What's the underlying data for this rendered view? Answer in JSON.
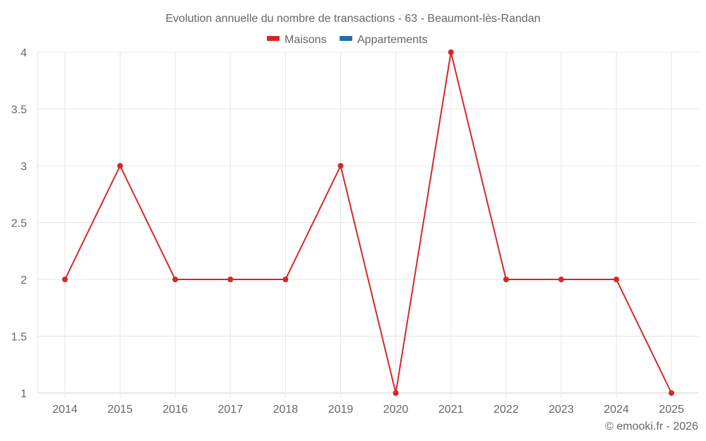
{
  "chart_data": {
    "type": "line",
    "title": "Evolution annuelle du nombre de transactions - 63 - Beaumont-lès-Randan",
    "xlabel": "",
    "ylabel": "",
    "categories": [
      "2014",
      "2015",
      "2016",
      "2017",
      "2018",
      "2019",
      "2020",
      "2021",
      "2022",
      "2023",
      "2024",
      "2025"
    ],
    "series": [
      {
        "name": "Maisons",
        "color": "#d62728",
        "values": [
          2,
          3,
          2,
          2,
          2,
          3,
          1,
          4,
          2,
          2,
          2,
          1
        ]
      },
      {
        "name": "Appartements",
        "color": "#1f6fa8",
        "values": []
      }
    ],
    "ylim": [
      1,
      4
    ],
    "yticks": [
      "1",
      "1.5",
      "2",
      "2.5",
      "3",
      "3.5",
      "4"
    ],
    "grid": true,
    "legend_position": "top"
  },
  "credit": "© emooki.fr - 2026"
}
